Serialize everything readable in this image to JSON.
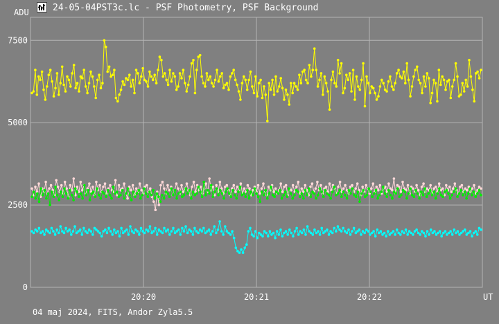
{
  "window": {
    "title": "24-05-04PST3c.lc - PSF Photometry, PSF Background",
    "icon": "chart-app-icon"
  },
  "footer": {
    "text": "04 maj 2024, FITS, Andor Zyla5.5"
  },
  "colors": {
    "background": "#808080",
    "grid": "#b4b4b4",
    "text": "#ffffff",
    "yellow": "#ffff00",
    "pink": "#ffd8d8",
    "green": "#00ee00",
    "cyan": "#00ffff"
  },
  "chart_data": {
    "type": "line",
    "ylabel": "ADU",
    "xlabel": "UT",
    "ylim": [
      0,
      8200
    ],
    "xlim": [
      "20:19:00",
      "20:23:00"
    ],
    "y_ticks": [
      0,
      2500,
      5000,
      7500
    ],
    "x_ticks": [
      "20:20",
      "20:21",
      "20:22"
    ],
    "grid": true,
    "series": [
      {
        "color": "#ffff00",
        "values": [
          5900,
          5950,
          6600,
          5850,
          6400,
          6300,
          6550,
          6000,
          5700,
          6100,
          6450,
          6600,
          6250,
          5800,
          6050,
          6500,
          5850,
          6200,
          6700,
          6150,
          5950,
          6400,
          6300,
          6100,
          6500,
          6750,
          6050,
          6200,
          5950,
          6400,
          6350,
          6600,
          6100,
          5900,
          6200,
          6550,
          6400,
          6100,
          5750,
          6300,
          6450,
          6050,
          6200,
          7500,
          7300,
          6550,
          6700,
          6400,
          6450,
          6600,
          5750,
          5650,
          5850,
          6000,
          6250,
          6150,
          6350,
          6300,
          6450,
          6100,
          6300,
          5900,
          6600,
          6500,
          6200,
          6400,
          6650,
          6300,
          6250,
          6100,
          6550,
          6400,
          6300,
          6450,
          6200,
          6600,
          7000,
          6900,
          6400,
          6500,
          6300,
          6150,
          6600,
          6250,
          6500,
          6400,
          6000,
          6100,
          6500,
          6350,
          6600,
          6200,
          5950,
          6150,
          6400,
          6800,
          6900,
          5900,
          6600,
          7000,
          7050,
          6400,
          6200,
          6100,
          6500,
          6300,
          6400,
          6200,
          6100,
          6300,
          6600,
          6250,
          6400,
          6500,
          6050,
          6150,
          6200,
          6000,
          6400,
          6500,
          6600,
          6300,
          6150,
          5950,
          5700,
          6200,
          6400,
          6300,
          6000,
          6300,
          6550,
          6100,
          5900,
          6400,
          5800,
          6200,
          6300,
          5750,
          6100,
          5850,
          5050,
          6200,
          6000,
          6300,
          5850,
          6400,
          5950,
          6100,
          6350,
          6050,
          5700,
          6000,
          5850,
          5550,
          6200,
          5900,
          6200,
          6100,
          6000,
          6450,
          6200,
          6550,
          6600,
          6300,
          6200,
          6750,
          6400,
          6600,
          7250,
          6600,
          6100,
          6300,
          6500,
          5850,
          6400,
          6200,
          5950,
          5400,
          6300,
          6550,
          6200,
          6100,
          6900,
          6500,
          6800,
          5900,
          6050,
          6450,
          6300,
          6500,
          5950,
          6600,
          5700,
          6400,
          6100,
          6000,
          6300,
          6800,
          5500,
          6400,
          6200,
          5900,
          6100,
          6050,
          5900,
          5700,
          5800,
          6100,
          6300,
          6200,
          6000,
          5950,
          6250,
          6400,
          6100,
          6000,
          6200,
          6500,
          6600,
          6400,
          6350,
          6550,
          6200,
          6800,
          6300,
          5800,
          6100,
          6400,
          6600,
          6700,
          6300,
          6200,
          5900,
          6400,
          6100,
          6500,
          6350,
          5600,
          5900,
          6300,
          6200,
          5650,
          6600,
          6150,
          6400,
          6300,
          6000,
          6250,
          6300,
          5750,
          6100,
          6300,
          6800,
          6400,
          5800,
          5850,
          6200,
          5950,
          6300,
          6100,
          6900,
          6400,
          6000,
          5650,
          6500,
          6550,
          6350,
          6600
        ]
      },
      {
        "color": "#ffd8d8",
        "values": [
          3000,
          2800,
          3050,
          2900,
          3150,
          2750,
          3000,
          2900,
          3200,
          2850,
          3000,
          3100,
          2950,
          2800,
          3250,
          3050,
          2900,
          3100,
          2850,
          3200,
          3000,
          2750,
          3100,
          2950,
          3300,
          2800,
          3050,
          2900,
          3200,
          2950,
          3100,
          2850,
          3000,
          3150,
          2900,
          3050,
          2800,
          3200,
          2950,
          3100,
          2900,
          3050,
          3150,
          2850,
          3000,
          3100,
          2950,
          2900,
          3250,
          2800,
          3100,
          2950,
          3000,
          3150,
          2850,
          2700,
          3050,
          2950,
          3100,
          2800,
          3000,
          2900,
          3150,
          2950,
          2850,
          3050,
          3100,
          2900,
          3000,
          2750,
          2600,
          2350,
          2900,
          2500,
          3100,
          3200,
          3000,
          2850,
          3100,
          2950,
          3050,
          2800,
          2950,
          3150,
          3000,
          2850,
          3100,
          2900,
          3000,
          3150,
          2950,
          2800,
          3050,
          3200,
          2900,
          3100,
          2950,
          3050,
          2850,
          3000,
          3150,
          2900,
          3300,
          2950,
          3050,
          2800,
          3100,
          2900,
          3200,
          3000,
          2850,
          3050,
          3100,
          2950,
          2800,
          3000,
          3100,
          2900,
          3050,
          2950,
          3150,
          2850,
          3000,
          2900,
          3100,
          3000,
          2800,
          2950,
          3050,
          2900,
          3100,
          2850,
          3000,
          3150,
          2900,
          2800,
          3050,
          2950,
          3100,
          2900,
          3000,
          2850,
          2950,
          3150,
          2900,
          3050,
          3100,
          2800,
          3000,
          2950,
          3100,
          2900,
          3050,
          3200,
          2850,
          3000,
          2900,
          3100,
          2950,
          2800,
          3050,
          3150,
          2900,
          3000,
          3200,
          2950,
          3100,
          2850,
          3000,
          3050,
          2900,
          3150,
          2950,
          3100,
          3000,
          2850,
          3050,
          3200,
          2900,
          3000,
          3100,
          2950,
          2850,
          3050,
          3100,
          2900,
          3000,
          3150,
          2950,
          2800,
          3050,
          2900,
          3100,
          3000,
          2850,
          3000,
          3150,
          2900,
          3050,
          2950,
          3100,
          2850,
          3000,
          3050,
          2900,
          3150,
          3000,
          2950,
          3300,
          2850,
          3100,
          3050,
          2900,
          3200,
          3000,
          2950,
          3100,
          2850,
          3050,
          3000,
          2900,
          3100,
          2950,
          2800,
          3050,
          3150,
          2900,
          3000,
          2950,
          3100,
          2850,
          3000,
          3050,
          2900,
          3150,
          2950,
          3000,
          2800,
          3100,
          2950,
          3050,
          2900,
          3000,
          3150,
          2950,
          2850,
          3050,
          3100,
          2900,
          3000,
          2950,
          3050,
          2900,
          3000,
          3100,
          2850,
          2950,
          3050,
          3000
        ]
      },
      {
        "color": "#00ee00",
        "values": [
          2750,
          2900,
          2700,
          2850,
          2600,
          3000,
          2800,
          2950,
          2700,
          2850,
          2500,
          2900,
          2750,
          3050,
          2800,
          2650,
          2900,
          2750,
          3000,
          2850,
          2700,
          2950,
          2800,
          2650,
          3000,
          2900,
          2750,
          2850,
          2700,
          3100,
          2800,
          2950,
          2650,
          2850,
          2900,
          2750,
          3000,
          2800,
          2700,
          2900,
          2850,
          2750,
          2950,
          2800,
          2700,
          3050,
          2850,
          2900,
          2750,
          2800,
          2950,
          2700,
          2850,
          3000,
          2800,
          2650,
          2900,
          2750,
          2850,
          2950,
          2700,
          2800,
          3000,
          2850,
          2750,
          2900,
          2800,
          2950,
          2700,
          2850,
          2750,
          2600,
          2800,
          2700,
          2900,
          2850,
          2750,
          3000,
          2800,
          2950,
          2700,
          2850,
          2900,
          2750,
          2800,
          3000,
          2850,
          2950,
          2700,
          2900,
          2800,
          2850,
          3050,
          2900,
          2750,
          3200,
          2800,
          2950,
          2850,
          3100,
          2750,
          2900,
          3000,
          2800,
          2950,
          2850,
          2700,
          2900,
          3000,
          2850,
          2750,
          2950,
          2800,
          2700,
          2900,
          3050,
          2800,
          2850,
          2750,
          2950,
          2700,
          2900,
          2800,
          3000,
          2850,
          2750,
          2600,
          2900,
          2800,
          2950,
          2700,
          2850,
          3050,
          2800,
          2750,
          2900,
          2850,
          2950,
          2700,
          2800,
          2900,
          2750,
          3000,
          2850,
          2700,
          2800,
          2950,
          2900,
          2750,
          2850,
          2700,
          2950,
          2800,
          3000,
          2750,
          2900,
          2850,
          2700,
          2800,
          3000,
          2900,
          2750,
          2950,
          2850,
          2800,
          2700,
          2900,
          3050,
          2800,
          2850,
          2950,
          2750,
          2900,
          2800,
          2700,
          2950,
          2850,
          3000,
          2800,
          2750,
          2900,
          2600,
          2850,
          2950,
          2750,
          2800,
          3000,
          2900,
          2750,
          2850,
          2950,
          2700,
          2800,
          2900,
          3050,
          2850,
          2750,
          2950,
          2800,
          2700,
          2900,
          2850,
          3000,
          2750,
          2800,
          2950,
          2900,
          2700,
          2850,
          3000,
          2800,
          2750,
          2950,
          2850,
          2700,
          2900,
          2800,
          3000,
          2750,
          2850,
          2950,
          2800,
          2900,
          2700,
          2850,
          3000,
          2800,
          2750,
          2900,
          2950,
          2850,
          2700,
          2800,
          2900,
          3000,
          2750,
          2850,
          2950,
          2800,
          2900,
          2700,
          2850,
          3000,
          2800,
          2900,
          2750,
          2850,
          2950,
          2800
        ]
      },
      {
        "color": "#00ffff",
        "values": [
          1700,
          1650,
          1750,
          1700,
          1800,
          1650,
          1700,
          1600,
          1750,
          1700,
          1650,
          1800,
          1700,
          1600,
          1750,
          1650,
          1850,
          1700,
          1650,
          1800,
          1700,
          1750,
          1600,
          1700,
          1850,
          1650,
          1700,
          1750,
          1600,
          1800,
          1700,
          1650,
          1750,
          1700,
          1600,
          1800,
          1750,
          1700,
          1650,
          1550,
          1700,
          1750,
          1650,
          1800,
          1700,
          1600,
          1750,
          1650,
          1700,
          1550,
          1800,
          1650,
          1700,
          1750,
          1600,
          1850,
          1700,
          1650,
          1750,
          1700,
          1600,
          1800,
          1700,
          1650,
          1750,
          1700,
          1850,
          1650,
          1700,
          1800,
          1600,
          1750,
          1700,
          1650,
          1800,
          1700,
          1750,
          1600,
          1700,
          1800,
          1650,
          1700,
          1750,
          1600,
          1800,
          1700,
          1850,
          1650,
          1750,
          1700,
          1600,
          1800,
          1700,
          1650,
          1750,
          1700,
          1800,
          1650,
          1700,
          1750,
          1600,
          1700,
          1850,
          1650,
          1750,
          2000,
          1700,
          1600,
          1850,
          1700,
          1650,
          1600,
          1700,
          1500,
          1200,
          1100,
          1050,
          1150,
          1050,
          1200,
          1300,
          1700,
          1800,
          1600,
          1550,
          1700,
          1500,
          1650,
          1600,
          1550,
          1700,
          1650,
          1550,
          1700,
          1600,
          1650,
          1500,
          1700,
          1600,
          1750,
          1550,
          1650,
          1700,
          1600,
          1750,
          1650,
          1550,
          1700,
          1800,
          1600,
          1700,
          1650,
          1750,
          1600,
          1850,
          1700,
          1650,
          1600,
          1750,
          1650,
          1700,
          1600,
          1800,
          1650,
          1700,
          1750,
          1600,
          1700,
          1650,
          1800,
          1700,
          1850,
          1750,
          1700,
          1800,
          1700,
          1650,
          1750,
          1600,
          1700,
          1800,
          1650,
          1700,
          1750,
          1600,
          1700,
          1650,
          1750,
          1700,
          1600,
          1650,
          1700,
          1550,
          1750,
          1650,
          1700,
          1600,
          1650,
          1550,
          1700,
          1600,
          1650,
          1700,
          1600,
          1750,
          1650,
          1600,
          1700,
          1650,
          1750,
          1600,
          1700,
          1650,
          1600,
          1700,
          1750,
          1650,
          1600,
          1700,
          1650,
          1550,
          1700,
          1600,
          1750,
          1650,
          1700,
          1600,
          1650,
          1700,
          1550,
          1650,
          1700,
          1600,
          1650,
          1700,
          1600,
          1750,
          1650,
          1700,
          1600,
          1650,
          1700,
          1750,
          1600,
          1650,
          1700,
          1550,
          1650,
          1700,
          1600,
          1800,
          1750
        ]
      }
    ]
  }
}
